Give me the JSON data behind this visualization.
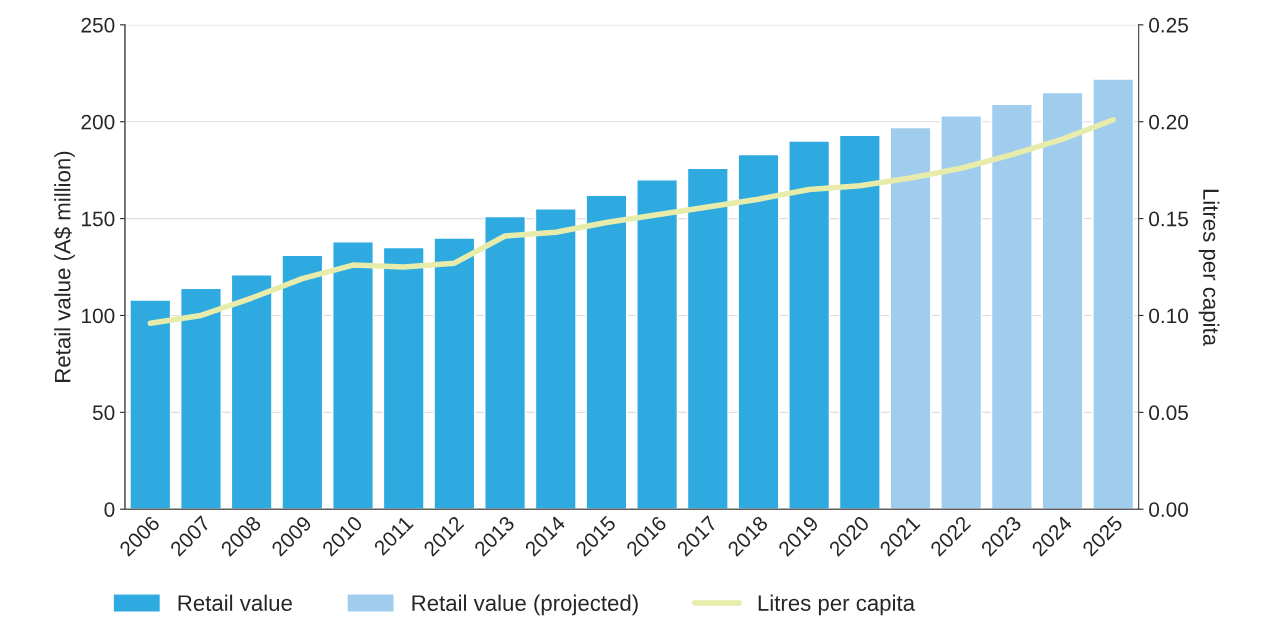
{
  "chart_data": {
    "type": "bar",
    "ylabel": "Retail value (A$ million)",
    "y2label": "Litres per capita",
    "categories": [
      "2006",
      "2007",
      "2008",
      "2009",
      "2010",
      "2011",
      "2012",
      "2013",
      "2014",
      "2015",
      "2016",
      "2017",
      "2018",
      "2019",
      "2020",
      "2021",
      "2022",
      "2023",
      "2024",
      "2025"
    ],
    "series": [
      {
        "name": "Retail value",
        "color": "#2eaae1",
        "values": [
          108,
          114,
          121,
          131,
          138,
          135,
          140,
          151,
          155,
          162,
          170,
          176,
          183,
          190,
          193,
          null,
          null,
          null,
          null,
          null
        ]
      },
      {
        "name": "Retail value (projected)",
        "color": "#a0cdee",
        "values": [
          null,
          null,
          null,
          null,
          null,
          null,
          null,
          null,
          null,
          null,
          null,
          null,
          null,
          null,
          null,
          197,
          203,
          209,
          215,
          222
        ]
      },
      {
        "name": "Litres per capita",
        "color": "#e8ecaa",
        "type": "line",
        "axis": "y2",
        "values": [
          0.096,
          0.1,
          0.109,
          0.119,
          0.126,
          0.125,
          0.127,
          0.141,
          0.143,
          0.148,
          0.152,
          0.156,
          0.16,
          0.165,
          0.167,
          0.171,
          0.176,
          0.183,
          0.191,
          0.201
        ]
      }
    ],
    "ylim": [
      0,
      250
    ],
    "yticks": [
      0,
      50,
      100,
      150,
      200,
      250
    ],
    "y2lim": [
      0,
      0.25
    ],
    "y2ticks": [
      {
        "value": 0,
        "label": "0.00"
      },
      {
        "value": 0.05,
        "label": "0.05"
      },
      {
        "value": 0.1,
        "label": "0.10"
      },
      {
        "value": 0.15,
        "label": "0.15"
      },
      {
        "value": 0.2,
        "label": "0.20"
      },
      {
        "value": 0.25,
        "label": "0.25"
      }
    ],
    "grid": "y",
    "legend": "bottom"
  }
}
